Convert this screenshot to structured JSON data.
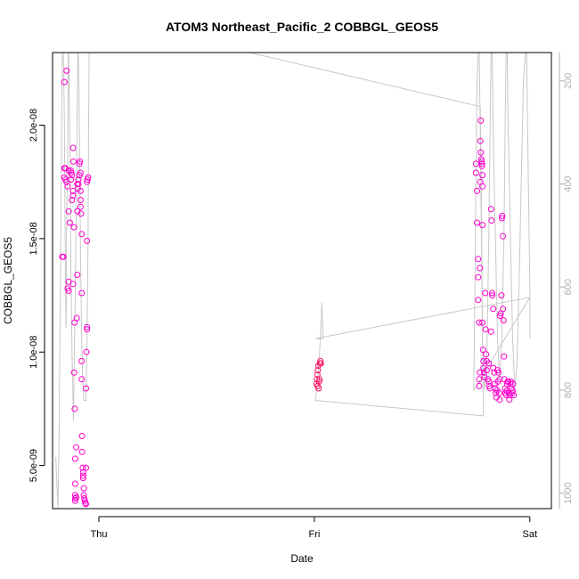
{
  "chart_data": {
    "type": "scatter",
    "title": "ATOM3 Northeast_Pacific_2 COBBGL_GEOS5",
    "xlabel": "Date",
    "ylabel": "COBBGL_GEOS5",
    "x_ticks": [
      "Thu",
      "Fri",
      "Sat"
    ],
    "x_tick_values": [
      0,
      1,
      2
    ],
    "xlim": [
      -0.215,
      2.1
    ],
    "ylim": [
      3.1e-09,
      2.32e-08
    ],
    "y_ticks": [
      "5.0e-09",
      "1.0e-08",
      "1.5e-08",
      "2.0e-08"
    ],
    "y_tick_values": [
      5e-09,
      1e-08,
      1.5e-08,
      2e-08
    ],
    "y2_ticks": [
      "200",
      "400",
      "600",
      "800",
      "1000"
    ],
    "y2_tick_values": [
      200,
      400,
      600,
      800,
      1000
    ],
    "y2lim": [
      1030,
      145
    ],
    "y2_reversed": true,
    "colors": {
      "points": "#ff00cc",
      "points_fri": "#ff1060",
      "pressure_line": "#c8c8c8",
      "axis": "#000000",
      "right_axis": "#b0b0b0"
    },
    "series": [
      {
        "marker": "open-circle",
        "points": [
          [
            -0.17,
            1.42e-08
          ],
          [
            -0.165,
            1.42e-08
          ],
          [
            -0.16,
            2.19e-08
          ],
          [
            -0.15,
            2.24e-08
          ],
          [
            -0.16,
            1.81e-08
          ],
          [
            -0.155,
            1.81e-08
          ],
          [
            -0.16,
            1.77e-08
          ],
          [
            -0.155,
            1.76e-08
          ],
          [
            -0.15,
            1.75e-08
          ],
          [
            -0.145,
            1.73e-08
          ],
          [
            -0.14,
            1.8e-08
          ],
          [
            -0.14,
            1.31e-08
          ],
          [
            -0.145,
            1.28e-08
          ],
          [
            -0.14,
            1.27e-08
          ],
          [
            -0.14,
            1.62e-08
          ],
          [
            -0.135,
            1.57e-08
          ],
          [
            -0.13,
            1.8e-08
          ],
          [
            -0.128,
            1.79e-08
          ],
          [
            -0.13,
            1.76e-08
          ],
          [
            -0.125,
            1.78e-08
          ],
          [
            -0.125,
            1.67e-08
          ],
          [
            -0.12,
            1.69e-08
          ],
          [
            -0.12,
            1.71e-08
          ],
          [
            -0.12,
            1.3e-08
          ],
          [
            -0.12,
            1.9e-08
          ],
          [
            -0.118,
            1.84e-08
          ],
          [
            -0.115,
            1.55e-08
          ],
          [
            -0.113,
            1.13e-08
          ],
          [
            -0.115,
            9.1e-09
          ],
          [
            -0.112,
            7.5e-09
          ],
          [
            -0.11,
            5.3e-09
          ],
          [
            -0.11,
            4.2e-09
          ],
          [
            -0.11,
            3.7e-09
          ],
          [
            -0.11,
            3.55e-09
          ],
          [
            -0.11,
            3.45e-09
          ],
          [
            -0.105,
            3.6e-09
          ],
          [
            -0.105,
            5.8e-09
          ],
          [
            -0.103,
            1.15e-08
          ],
          [
            -0.1,
            1.34e-08
          ],
          [
            -0.1,
            1.62e-08
          ],
          [
            -0.1,
            1.74e-08
          ],
          [
            -0.098,
            1.72e-08
          ],
          [
            -0.095,
            1.74e-08
          ],
          [
            -0.095,
            1.76e-08
          ],
          [
            -0.09,
            1.78e-08
          ],
          [
            -0.09,
            1.83e-08
          ],
          [
            -0.088,
            1.84e-08
          ],
          [
            -0.085,
            1.79e-08
          ],
          [
            -0.085,
            1.71e-08
          ],
          [
            -0.085,
            1.67e-08
          ],
          [
            -0.085,
            1.64e-08
          ],
          [
            -0.083,
            1.61e-08
          ],
          [
            -0.08,
            1.52e-08
          ],
          [
            -0.08,
            1.26e-08
          ],
          [
            -0.08,
            9.6e-09
          ],
          [
            -0.08,
            8.8e-09
          ],
          [
            -0.078,
            6.3e-09
          ],
          [
            -0.078,
            5.6e-09
          ],
          [
            -0.075,
            4.9e-09
          ],
          [
            -0.073,
            4.7e-09
          ],
          [
            -0.073,
            4.55e-09
          ],
          [
            -0.073,
            4.45e-09
          ],
          [
            -0.07,
            4e-09
          ],
          [
            -0.07,
            3.7e-09
          ],
          [
            -0.068,
            3.55e-09
          ],
          [
            -0.065,
            3.45e-09
          ],
          [
            -0.063,
            3.35e-09
          ],
          [
            -0.06,
            3.3e-09
          ],
          [
            -0.06,
            4.9e-09
          ],
          [
            -0.06,
            8.4e-09
          ],
          [
            -0.058,
            1e-08
          ],
          [
            -0.055,
            1.1e-08
          ],
          [
            -0.055,
            1.11e-08
          ],
          [
            -0.055,
            1.49e-08
          ],
          [
            -0.055,
            1.75e-08
          ],
          [
            -0.053,
            1.76e-08
          ],
          [
            -0.05,
            1.77e-08
          ],
          [
            1.01,
            8.6e-09
          ],
          [
            1.012,
            8.8e-09
          ],
          [
            1.014,
            9e-09
          ],
          [
            1.016,
            9.2e-09
          ],
          [
            1.018,
            9.4e-09
          ],
          [
            1.015,
            8.5e-09
          ],
          [
            1.02,
            8.4e-09
          ],
          [
            1.022,
            8.7e-09
          ],
          [
            1.024,
            8.8e-09
          ],
          [
            1.026,
            9.5e-09
          ],
          [
            1.028,
            9.6e-09
          ],
          [
            1.03,
            9.5e-09
          ],
          [
            1.75,
            1.83e-08
          ],
          [
            1.75,
            1.79e-08
          ],
          [
            1.755,
            1.71e-08
          ],
          [
            1.755,
            1.57e-08
          ],
          [
            1.76,
            1.41e-08
          ],
          [
            1.76,
            1.33e-08
          ],
          [
            1.76,
            1.23e-08
          ],
          [
            1.765,
            1.13e-08
          ],
          [
            1.765,
            8.5e-09
          ],
          [
            1.765,
            8.8e-09
          ],
          [
            1.768,
            9.1e-09
          ],
          [
            1.768,
            1.37e-08
          ],
          [
            1.77,
            1.75e-08
          ],
          [
            1.77,
            1.93e-08
          ],
          [
            1.772,
            2.02e-08
          ],
          [
            1.772,
            1.88e-08
          ],
          [
            1.775,
            1.85e-08
          ],
          [
            1.776,
            1.84e-08
          ],
          [
            1.778,
            1.83e-08
          ],
          [
            1.778,
            1.82e-08
          ],
          [
            1.78,
            1.78e-08
          ],
          [
            1.78,
            1.73e-08
          ],
          [
            1.78,
            1.56e-08
          ],
          [
            1.78,
            1.13e-08
          ],
          [
            1.783,
            1.01e-08
          ],
          [
            1.785,
            9.6e-09
          ],
          [
            1.785,
            9.3e-09
          ],
          [
            1.787,
            9.1e-09
          ],
          [
            1.79,
            8.9e-09
          ],
          [
            1.793,
            1.26e-08
          ],
          [
            1.795,
            1.1e-08
          ],
          [
            1.797,
            9.9e-09
          ],
          [
            1.8,
            9.6e-09
          ],
          [
            1.8,
            9.2e-09
          ],
          [
            1.805,
            8.8e-09
          ],
          [
            1.81,
            9.5e-09
          ],
          [
            1.81,
            8.7e-09
          ],
          [
            1.812,
            8.5e-09
          ],
          [
            1.815,
            8.4e-09
          ],
          [
            1.82,
            1.09e-08
          ],
          [
            1.82,
            1.63e-08
          ],
          [
            1.822,
            1.58e-08
          ],
          [
            1.825,
            1.26e-08
          ],
          [
            1.826,
            1.25e-08
          ],
          [
            1.83,
            1.19e-08
          ],
          [
            1.83,
            9.3e-09
          ],
          [
            1.835,
            9.1e-09
          ],
          [
            1.838,
            8.6e-09
          ],
          [
            1.84,
            8.4e-09
          ],
          [
            1.842,
            8.2e-09
          ],
          [
            1.845,
            8e-09
          ],
          [
            1.848,
            8.3e-09
          ],
          [
            1.85,
            9.2e-09
          ],
          [
            1.852,
            8.7e-09
          ],
          [
            1.855,
            9.1e-09
          ],
          [
            1.858,
            8.2e-09
          ],
          [
            1.86,
            7.9e-09
          ],
          [
            1.86,
            8.8e-09
          ],
          [
            1.862,
            1.16e-08
          ],
          [
            1.865,
            1.17e-08
          ],
          [
            1.868,
            1.25e-08
          ],
          [
            1.87,
            1.59e-08
          ],
          [
            1.872,
            1.6e-08
          ],
          [
            1.875,
            1.51e-08
          ],
          [
            1.875,
            1.19e-08
          ],
          [
            1.878,
            1.14e-08
          ],
          [
            1.88,
            9.8e-09
          ],
          [
            1.882,
            8.8e-09
          ],
          [
            1.885,
            8.4e-09
          ],
          [
            1.887,
            8.2e-09
          ],
          [
            1.89,
            8.1e-09
          ],
          [
            1.893,
            8.3e-09
          ],
          [
            1.895,
            8.6e-09
          ],
          [
            1.897,
            8.7e-09
          ],
          [
            1.9,
            8.7e-09
          ],
          [
            1.903,
            8.2e-09
          ],
          [
            1.905,
            7.9e-09
          ],
          [
            1.907,
            8.1e-09
          ],
          [
            1.91,
            8.6e-09
          ],
          [
            1.912,
            8.7e-09
          ],
          [
            1.915,
            8.4e-09
          ],
          [
            1.918,
            8.2e-09
          ],
          [
            1.92,
            8.3e-09
          ],
          [
            1.922,
            8.6e-09
          ],
          [
            1.925,
            8.1e-09
          ]
        ]
      }
    ],
    "pressure_trace": [
      [
        -0.2,
        930
      ],
      [
        -0.19,
        1030
      ],
      [
        -0.185,
        890
      ],
      [
        -0.18,
        650
      ],
      [
        -0.175,
        400
      ],
      [
        -0.17,
        145
      ],
      [
        -0.165,
        145
      ],
      [
        -0.16,
        280
      ],
      [
        -0.155,
        600
      ],
      [
        -0.152,
        680
      ],
      [
        -0.15,
        500
      ],
      [
        -0.145,
        360
      ],
      [
        -0.142,
        145
      ],
      [
        -0.14,
        145
      ],
      [
        -0.135,
        300
      ],
      [
        -0.13,
        560
      ],
      [
        -0.125,
        720
      ],
      [
        -0.12,
        820
      ],
      [
        -0.118,
        860
      ],
      [
        -0.115,
        760
      ],
      [
        -0.11,
        620
      ],
      [
        -0.105,
        450
      ],
      [
        -0.1,
        220
      ],
      [
        -0.098,
        145
      ],
      [
        -0.095,
        145
      ],
      [
        -0.09,
        300
      ],
      [
        -0.085,
        540
      ],
      [
        -0.08,
        700
      ],
      [
        -0.075,
        780
      ],
      [
        -0.07,
        820
      ],
      [
        -0.065,
        820
      ],
      [
        -0.06,
        820
      ],
      [
        -0.055,
        700
      ],
      [
        -0.05,
        500
      ],
      [
        -0.048,
        300
      ],
      [
        -0.045,
        145
      ],
      [
        -0.04,
        145
      ],
      [
        0.7,
        145
      ],
      [
        1.77,
        250
      ],
      [
        1.775,
        400
      ],
      [
        1.78,
        700
      ],
      [
        1.785,
        850
      ],
      [
        1.005,
        820
      ],
      [
        1.01,
        800
      ],
      [
        1.015,
        780
      ],
      [
        1.02,
        760
      ],
      [
        1.025,
        720
      ],
      [
        1.03,
        680
      ],
      [
        1.035,
        630
      ],
      [
        1.04,
        700
      ],
      [
        1.005,
        700
      ],
      [
        2.0,
        620
      ],
      [
        1.74,
        800
      ],
      [
        1.745,
        600
      ],
      [
        1.75,
        400
      ],
      [
        1.755,
        200
      ],
      [
        1.76,
        145
      ],
      [
        1.765,
        145
      ],
      [
        1.77,
        300
      ],
      [
        1.775,
        500
      ],
      [
        1.78,
        700
      ],
      [
        1.79,
        800
      ],
      [
        1.8,
        750
      ],
      [
        1.81,
        500
      ],
      [
        1.815,
        300
      ],
      [
        1.82,
        145
      ],
      [
        1.825,
        145
      ],
      [
        1.83,
        300
      ],
      [
        1.84,
        500
      ],
      [
        1.85,
        700
      ],
      [
        1.86,
        780
      ],
      [
        1.87,
        700
      ],
      [
        1.88,
        500
      ],
      [
        1.885,
        300
      ],
      [
        1.89,
        145
      ],
      [
        1.895,
        145
      ],
      [
        1.9,
        300
      ],
      [
        1.91,
        500
      ],
      [
        1.92,
        700
      ],
      [
        1.93,
        800
      ],
      [
        1.94,
        750
      ],
      [
        1.95,
        600
      ],
      [
        1.96,
        400
      ],
      [
        1.97,
        200
      ],
      [
        1.98,
        145
      ],
      [
        1.985,
        145
      ],
      [
        1.99,
        300
      ],
      [
        2.0,
        600
      ],
      [
        2.0,
        700
      ]
    ]
  }
}
